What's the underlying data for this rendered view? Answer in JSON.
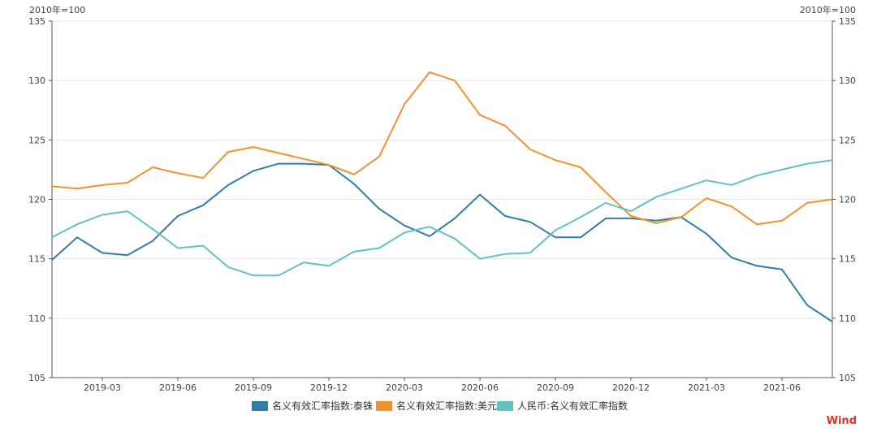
{
  "chart_data": {
    "type": "line",
    "y_unit_left": "2010年=100",
    "y_unit_right": "2010年=100",
    "ylim": [
      105,
      135
    ],
    "yticks": [
      105,
      110,
      115,
      120,
      125,
      130,
      135
    ],
    "x_months": [
      "2019-01",
      "2019-02",
      "2019-03",
      "2019-04",
      "2019-05",
      "2019-06",
      "2019-07",
      "2019-08",
      "2019-09",
      "2019-10",
      "2019-11",
      "2019-12",
      "2020-01",
      "2020-02",
      "2020-03",
      "2020-04",
      "2020-05",
      "2020-06",
      "2020-07",
      "2020-08",
      "2020-09",
      "2020-10",
      "2020-11",
      "2020-12",
      "2021-01",
      "2021-02",
      "2021-03",
      "2021-04",
      "2021-05",
      "2021-06",
      "2021-07",
      "2021-08"
    ],
    "xtick_labels": [
      "2019-03",
      "2019-06",
      "2019-09",
      "2019-12",
      "2020-03",
      "2020-06",
      "2020-09",
      "2020-12",
      "2021-03",
      "2021-06"
    ],
    "xtick_index": [
      2,
      5,
      8,
      11,
      14,
      17,
      20,
      23,
      26,
      29
    ],
    "series": [
      {
        "name": "名义有效汇率指数:泰铢",
        "color": "#2e7ea6",
        "values": [
          114.9,
          116.8,
          115.5,
          115.3,
          116.5,
          118.6,
          119.5,
          121.2,
          122.4,
          123.0,
          123.0,
          122.9,
          121.3,
          119.2,
          117.8,
          116.9,
          118.4,
          120.4,
          118.6,
          118.1,
          116.8,
          116.8,
          118.4,
          118.4,
          118.2,
          118.5,
          117.1,
          115.1,
          114.4,
          114.1,
          111.1,
          109.7
        ]
      },
      {
        "name": "名义有效汇率指数:美元",
        "color": "#f0922e",
        "values": [
          121.1,
          120.9,
          121.2,
          121.4,
          122.7,
          122.2,
          121.8,
          124.0,
          124.4,
          123.9,
          123.4,
          122.9,
          122.1,
          123.6,
          128.0,
          130.7,
          130.0,
          127.1,
          126.2,
          124.2,
          123.3,
          122.7,
          120.6,
          118.6,
          118.0,
          118.5,
          120.1,
          119.4,
          117.9,
          118.2,
          119.7,
          120.0
        ]
      },
      {
        "name": "人民币:名义有效汇率指数",
        "color": "#63c2c0",
        "values": [
          116.8,
          117.9,
          118.7,
          119.0,
          117.5,
          115.9,
          116.1,
          114.3,
          113.6,
          113.6,
          114.7,
          114.4,
          115.6,
          115.9,
          117.2,
          117.7,
          116.7,
          115.0,
          115.4,
          115.5,
          117.4,
          118.5,
          119.7,
          119.0,
          120.2,
          120.9,
          121.6,
          121.2,
          122.0,
          122.5,
          123.0,
          123.3
        ]
      }
    ]
  },
  "source": "Wind"
}
